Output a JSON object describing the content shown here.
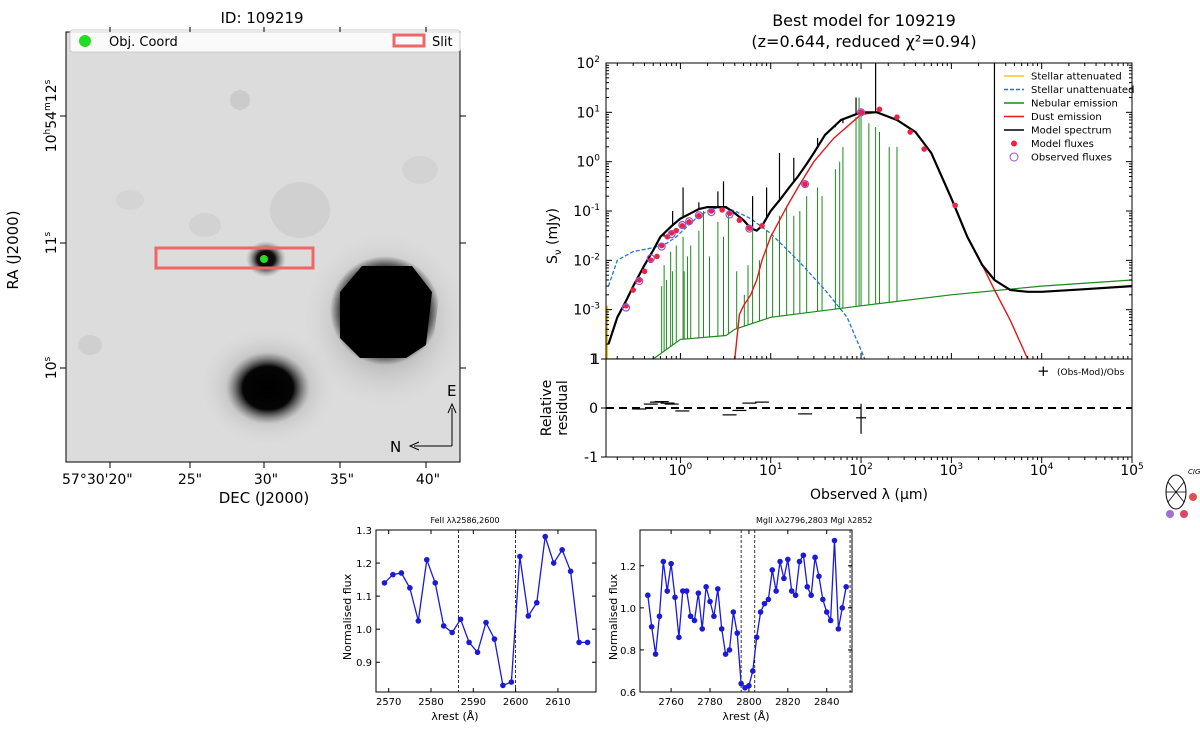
{
  "chart_data": [
    {
      "type": "image",
      "title": "ID: 109219",
      "xlabel": "DEC (J2000)",
      "ylabel": "RA (J2000)",
      "x_ticks": [
        "57°30'20\"",
        "25\"",
        "30\"",
        "35\"",
        "40\""
      ],
      "y_ticks": [
        {
          "main": "10",
          "sup": "h",
          "main2": "54",
          "sup2": "m",
          "main3": "12",
          "sup3": "s"
        },
        {
          "main": "11",
          "sup": "s"
        },
        {
          "main": "10",
          "sup": "s"
        }
      ],
      "legend": [
        "Obj. Coord",
        "Slit"
      ],
      "compass": {
        "east": "E",
        "north": "N"
      },
      "colors": {
        "object": "#22dd22",
        "slit": "#ee6666"
      }
    },
    {
      "type": "line",
      "title": "Best model for 109219",
      "subtitle": "(z=0.644, reduced χ²=0.94)",
      "xlabel": "Observed λ (μm)",
      "ylabel": "S",
      "ylabel_sub": "ν",
      "ylabel_unit": "(mJy)",
      "xscale": "log",
      "yscale": "log",
      "xlim": [
        0.15,
        100000
      ],
      "ylim": [
        0.0001,
        100
      ],
      "x_ticks": [
        {
          "b": "10",
          "e": "0"
        },
        {
          "b": "10",
          "e": "1"
        },
        {
          "b": "10",
          "e": "2"
        },
        {
          "b": "10",
          "e": "3"
        },
        {
          "b": "10",
          "e": "4"
        },
        {
          "b": "10",
          "e": "5"
        }
      ],
      "y_ticks": [
        {
          "b": "10",
          "e": "-3"
        },
        {
          "b": "10",
          "e": "-2"
        },
        {
          "b": "10",
          "e": "-1"
        },
        {
          "b": "10",
          "e": "0"
        },
        {
          "b": "10",
          "e": "1"
        },
        {
          "b": "10",
          "e": "2"
        }
      ],
      "y_bottom_tick": "1",
      "legend": [
        {
          "label": "Stellar attenuated",
          "color": "#f5c518",
          "style": "line"
        },
        {
          "label": "Stellar unattenuated",
          "color": "#1f77d0",
          "style": "dashed"
        },
        {
          "label": "Nebular emission",
          "color": "#1a8a1a",
          "style": "line"
        },
        {
          "label": "Dust emission",
          "color": "#e0191b",
          "style": "line"
        },
        {
          "label": "Model spectrum",
          "color": "#000000",
          "style": "line"
        },
        {
          "label": "Model fluxes",
          "color": "#ee2244",
          "style": "dot"
        },
        {
          "label": "Observed fluxes",
          "color": "#9a55cc",
          "style": "circle"
        }
      ],
      "series": [
        {
          "name": "Model spectrum",
          "x": [
            0.16,
            0.2,
            0.25,
            0.3,
            0.4,
            0.5,
            0.6,
            0.8,
            1.0,
            1.3,
            1.6,
            2.0,
            2.5,
            3.2,
            4.0,
            5.0,
            6.0,
            7.0,
            8.0,
            10,
            13,
            16,
            20,
            25,
            30,
            40,
            60,
            100,
            150,
            250,
            400,
            600,
            1000,
            1500,
            2200,
            3000,
            4500,
            7000,
            10000,
            30000,
            100000
          ],
          "y": [
            0.0002,
            0.0007,
            0.0015,
            0.003,
            0.008,
            0.016,
            0.03,
            0.05,
            0.07,
            0.09,
            0.11,
            0.12,
            0.12,
            0.12,
            0.09,
            0.065,
            0.045,
            0.04,
            0.05,
            0.1,
            0.18,
            0.3,
            0.5,
            0.9,
            1.5,
            3.5,
            7,
            10,
            10,
            7,
            4,
            1.5,
            0.18,
            0.03,
            0.008,
            0.004,
            0.0025,
            0.0023,
            0.0023,
            0.0026,
            0.003
          ]
        },
        {
          "name": "Stellar unattenuated",
          "x": [
            0.16,
            0.2,
            0.3,
            0.5,
            0.7,
            0.9,
            1.2,
            1.6,
            2.2,
            3.0,
            4.0,
            6.0,
            10,
            20,
            40,
            70,
            110
          ],
          "y": [
            0.003,
            0.01,
            0.015,
            0.018,
            0.022,
            0.03,
            0.05,
            0.08,
            0.11,
            0.12,
            0.1,
            0.07,
            0.035,
            0.01,
            0.0025,
            0.0007,
            0.0001
          ]
        },
        {
          "name": "Dust emission",
          "x": [
            4.0,
            4.5,
            5,
            6,
            7,
            8,
            10,
            15,
            20,
            30,
            50,
            100,
            150,
            250,
            400,
            600,
            1000,
            1500,
            2200,
            3000,
            4500,
            7000
          ],
          "y": [
            0.0001,
            0.0008,
            0.0012,
            0.002,
            0.004,
            0.01,
            0.03,
            0.12,
            0.3,
            1,
            3,
            9,
            10,
            7,
            4,
            1.5,
            0.18,
            0.03,
            0.008,
            0.0025,
            0.0006,
            0.0001
          ]
        },
        {
          "name": "Nebular emission",
          "x": [
            0.16,
            0.5,
            1,
            3.2,
            4,
            10,
            100,
            1000,
            10000,
            100000
          ],
          "y": [
            0.0001,
            0.0001,
            0.00025,
            0.0003,
            0.0004,
            0.0007,
            0.0012,
            0.002,
            0.003,
            0.004
          ]
        }
      ],
      "model_fluxes": {
        "x": [
          0.25,
          0.3,
          0.35,
          0.4,
          0.47,
          0.55,
          0.62,
          0.72,
          0.8,
          0.9,
          1.05,
          1.25,
          1.6,
          2.2,
          2.9,
          3.5,
          4.5,
          5.8,
          8.0,
          24,
          100,
          160,
          250,
          350,
          500,
          1100
        ],
        "y": [
          0.0012,
          0.0025,
          0.004,
          0.006,
          0.01,
          0.012,
          0.02,
          0.03,
          0.036,
          0.04,
          0.05,
          0.06,
          0.08,
          0.1,
          0.105,
          0.09,
          0.065,
          0.045,
          0.05,
          0.35,
          10,
          11.5,
          8,
          4,
          1.8,
          0.13
        ]
      },
      "observed_fluxes": {
        "x": [
          0.25,
          0.35,
          0.47,
          0.62,
          0.8,
          1.05,
          1.25,
          1.6,
          2.2,
          3.5,
          5.8,
          24,
          100
        ],
        "y": [
          0.0011,
          0.0038,
          0.011,
          0.019,
          0.034,
          0.052,
          0.062,
          0.082,
          0.095,
          0.085,
          0.044,
          0.35,
          10
        ]
      }
    },
    {
      "type": "scatter",
      "title": "",
      "xlabel": "Observed λ (μm)",
      "ylabel": "Relative residual",
      "ylim": [
        -1,
        1
      ],
      "y_ticks": [
        "-1",
        "0",
        "1"
      ],
      "legend": "(Obs-Mod)/Obs",
      "x": [
        0.35,
        0.47,
        0.55,
        0.62,
        0.72,
        0.8,
        1.05,
        3.5,
        4.5,
        5.8,
        8.0,
        24,
        100
      ],
      "y": [
        -0.02,
        0.08,
        0.12,
        0.13,
        0.1,
        0.08,
        -0.06,
        -0.14,
        -0.05,
        0.1,
        0.12,
        -0.12,
        -0.2
      ]
    },
    {
      "type": "line",
      "title": "FeII λλ2586,2600",
      "xlabel": "λrest (Å)",
      "ylabel": "Normalised flux",
      "xlim": [
        2567,
        2619
      ],
      "ylim": [
        0.81,
        1.3
      ],
      "x_ticks": [
        "2570",
        "2580",
        "2590",
        "2600",
        "2610"
      ],
      "y_ticks": [
        "0.9",
        "1.0",
        "1.1",
        "1.2",
        "1.3"
      ],
      "vlines": [
        2586.5,
        2600
      ],
      "series": [
        {
          "name": "spectrum",
          "x": [
            2569,
            2571,
            2573,
            2575,
            2577,
            2579,
            2581,
            2583,
            2585,
            2587,
            2589,
            2591,
            2593,
            2595,
            2597,
            2599,
            2601,
            2603,
            2605,
            2607,
            2609,
            2611,
            2613,
            2615,
            2617
          ],
          "y": [
            1.14,
            1.165,
            1.17,
            1.125,
            1.025,
            1.21,
            1.14,
            1.01,
            0.99,
            1.03,
            0.96,
            0.93,
            1.02,
            0.97,
            0.83,
            0.84,
            1.22,
            1.04,
            1.08,
            1.28,
            1.2,
            1.24,
            1.175,
            0.96,
            0.96
          ]
        }
      ]
    },
    {
      "type": "line",
      "title": "MgII λλ2796,2803   MgI λ2852",
      "xlabel": "λrest (Å)",
      "ylabel": "Normalised flux",
      "xlim": [
        2744,
        2853
      ],
      "ylim": [
        0.6,
        1.37
      ],
      "x_ticks": [
        "2760",
        "2780",
        "2800",
        "2820",
        "2840"
      ],
      "y_ticks": [
        "0.6",
        "0.8",
        "1.0",
        "1.2"
      ],
      "vlines": [
        2796,
        2803,
        2852
      ],
      "series": [
        {
          "name": "spectrum",
          "x": [
            2748,
            2750,
            2752,
            2754,
            2756,
            2758,
            2760,
            2762,
            2764,
            2766,
            2768,
            2770,
            2772,
            2774,
            2776,
            2778,
            2780,
            2782,
            2784,
            2786,
            2788,
            2790,
            2792,
            2794,
            2796,
            2798,
            2800,
            2802,
            2804,
            2806,
            2808,
            2810,
            2812,
            2814,
            2816,
            2818,
            2820,
            2822,
            2824,
            2826,
            2828,
            2830,
            2832,
            2834,
            2836,
            2838,
            2840,
            2842,
            2844,
            2846,
            2848,
            2850
          ],
          "y": [
            1.06,
            0.91,
            0.78,
            0.96,
            1.22,
            1.08,
            1.21,
            1.05,
            0.86,
            1.08,
            1.08,
            0.96,
            0.94,
            1.07,
            0.9,
            1.1,
            1.03,
            0.96,
            1.09,
            0.9,
            0.78,
            0.8,
            0.98,
            0.88,
            0.64,
            0.62,
            0.63,
            0.7,
            0.86,
            0.98,
            1.02,
            1.04,
            1.18,
            1.08,
            1.22,
            1.14,
            1.23,
            1.08,
            1.06,
            1.22,
            1.25,
            1.1,
            1.06,
            1.24,
            1.15,
            1.04,
            0.98,
            0.94,
            1.32,
            0.9,
            1.0,
            1.1
          ]
        }
      ]
    }
  ],
  "cigale_logo_text": "CIGALE"
}
